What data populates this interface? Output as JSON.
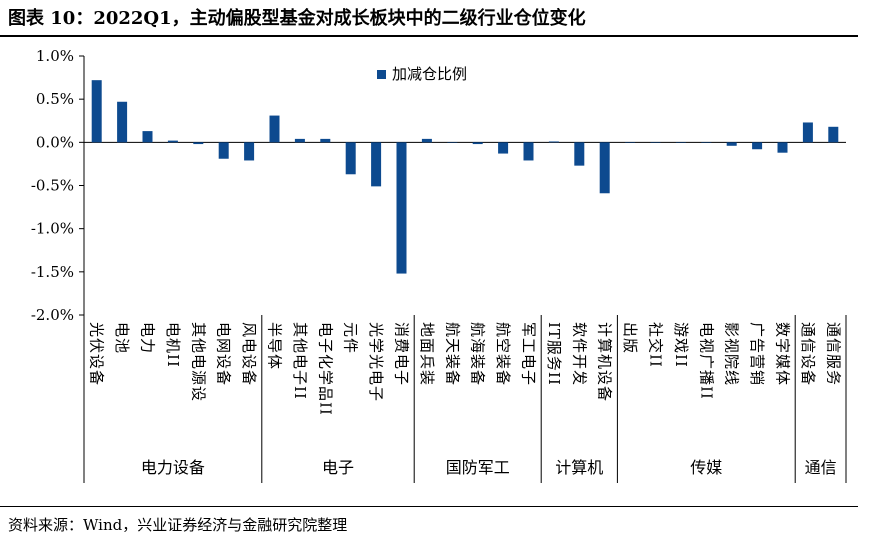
{
  "title": "图表 10：2022Q1，主动偏股型基金对成长板块中的二级行业仓位变化",
  "source": "资料来源：Wind，兴业证券经济与金融研究院整理",
  "chart_data": {
    "type": "bar",
    "legend": [
      "加减仓比例"
    ],
    "legend_position": "top-center",
    "bar_color": "#0d4a8f",
    "ylim": [
      -2.0,
      1.0
    ],
    "yticks": [
      "1.0%",
      "0.5%",
      "0.0%",
      "-0.5%",
      "-1.0%",
      "-1.5%",
      "-2.0%"
    ],
    "ytick_values": [
      1.0,
      0.5,
      0.0,
      -0.5,
      -1.0,
      -1.5,
      -2.0
    ],
    "categories": [
      "光伏设备",
      "电池",
      "电力",
      "电机II",
      "其他电源设",
      "电网设备",
      "风电设备",
      "半导体",
      "其他电子II",
      "电子化学品II",
      "元件",
      "光学光电子",
      "消费电子",
      "地面兵装",
      "航天装备",
      "航海装备",
      "航空装备",
      "军工电子",
      "IT服务II",
      "软件开发",
      "计算机设备",
      "出版",
      "社交II",
      "游戏II",
      "电视广播II",
      "影视院线",
      "广告营销",
      "数字媒体",
      "通信设备",
      "通信服务"
    ],
    "values": [
      0.72,
      0.47,
      0.13,
      0.02,
      -0.02,
      -0.19,
      -0.21,
      0.31,
      0.04,
      0.04,
      -0.37,
      -0.51,
      -1.52,
      0.04,
      0.0,
      -0.02,
      -0.13,
      -0.21,
      0.01,
      -0.27,
      -0.59,
      0.0,
      0.0,
      0.0,
      0.0,
      -0.04,
      -0.08,
      -0.12,
      0.23,
      0.18
    ],
    "groups": [
      {
        "name": "电力设备",
        "count": 7
      },
      {
        "name": "电子",
        "count": 6
      },
      {
        "name": "国防军工",
        "count": 5
      },
      {
        "name": "计算机",
        "count": 3
      },
      {
        "name": "传媒",
        "count": 7
      },
      {
        "name": "通信",
        "count": 2
      }
    ],
    "grid": false
  }
}
